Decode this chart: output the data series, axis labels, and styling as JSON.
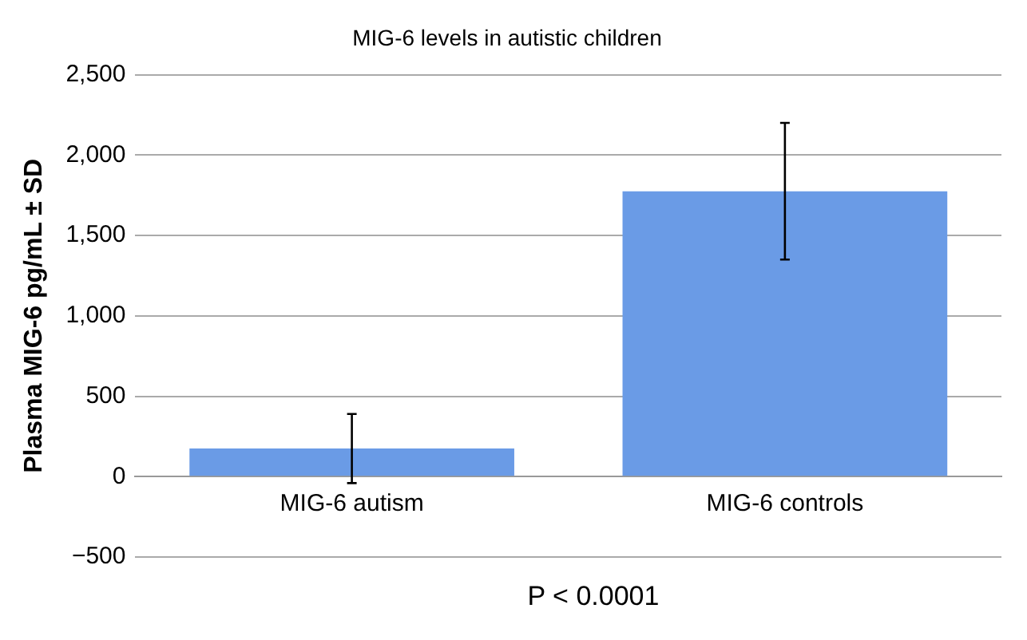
{
  "chart_data": {
    "type": "bar",
    "title": "MIG-6 levels in autistic children",
    "ylabel": "Plasma MIG-6 pg/mL ± SD",
    "categories": [
      "MIG-6 autism",
      "MIG-6 controls"
    ],
    "values": [
      175,
      1775
    ],
    "errors": [
      215,
      425
    ],
    "color": "#6a9be6",
    "ylim": [
      -500,
      2500
    ],
    "yticks": [
      {
        "value": -500,
        "label": "−500"
      },
      0,
      500,
      {
        "value": 1000,
        "label": "1,000"
      },
      {
        "value": 1500,
        "label": "1,500"
      },
      {
        "value": 2000,
        "label": "2,000"
      },
      {
        "value": 2500,
        "label": "2,500"
      }
    ],
    "grid": "y",
    "annotations": [
      "P < 0.0001"
    ]
  }
}
